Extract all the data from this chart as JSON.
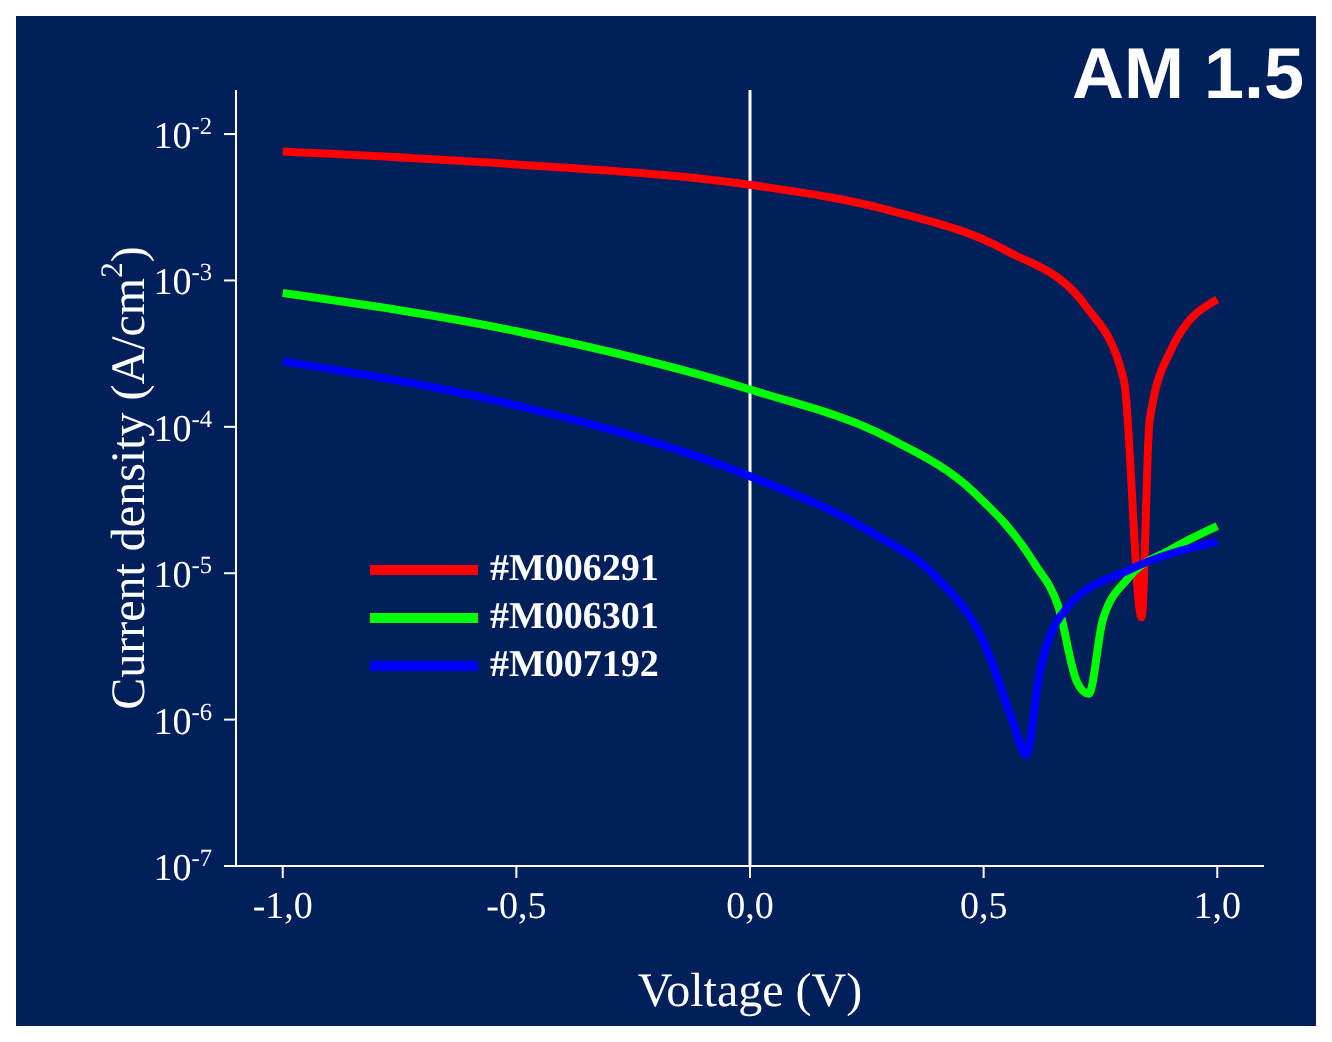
{
  "chart_data": {
    "type": "line",
    "xlabel": "Voltage (V)",
    "ylabel": "Current density (A/cm$^{2}$)",
    "annotations": [
      "AM 1.5"
    ],
    "log": "y",
    "xlim": [
      -1.1,
      1.1
    ],
    "xticks": [
      {
        "value": -1,
        "label": "-1,0"
      },
      {
        "value": -0.5,
        "label": "-0,5"
      },
      {
        "value": 0,
        "label": "0,0"
      },
      {
        "value": 0.5,
        "label": "0,5"
      },
      {
        "value": 1,
        "label": "1,0"
      }
    ],
    "ylim": [
      1e-07,
      0.02
    ],
    "yticks": [
      {
        "value": 1e-07,
        "label": "10$^{-7}$"
      },
      {
        "value": 1e-06,
        "label": "10$^{-6}$"
      },
      {
        "value": 1e-05,
        "label": "10$^{-5}$"
      },
      {
        "value": 0.0001,
        "label": "10$^{-4}$"
      },
      {
        "value": 0.001,
        "label": "10$^{-3}$"
      },
      {
        "value": 0.01,
        "label": "10$^{-2}$"
      }
    ],
    "ref_lines": [
      {
        "axis": "x",
        "value": 0,
        "color": "#ffffff"
      }
    ],
    "legend": "bottom left",
    "marker": "none",
    "line_style": "solid",
    "series": [
      {
        "name": "#M006291",
        "color": "#ff0000",
        "x": [
          -1,
          -0.5,
          0,
          0.3,
          0.548,
          0.72,
          0.8,
          0.838,
          0.855,
          0.9,
          1
        ],
        "values": [
          0.0076,
          0.0062,
          0.0045,
          0.003,
          0.0016,
          0.00066,
          0.00021,
          5e-06,
          0.00011,
          0.00033,
          0.00074
        ]
      },
      {
        "name": "#M006301",
        "color": "#00ff00",
        "x": [
          -1,
          -0.5,
          0,
          0.3,
          0.478,
          0.61,
          0.66,
          0.7,
          0.725,
          0.755,
          0.81,
          0.9,
          1
        ],
        "values": [
          0.00082,
          0.00045,
          0.00018,
          8.3e-05,
          3.6e-05,
          1.15e-05,
          5.9e-06,
          1.8e-06,
          1.5e-06,
          4.8e-06,
          9.3e-06,
          1.45e-05,
          2.1e-05
        ]
      },
      {
        "name": "#M007192",
        "color": "#0000ff",
        "x": [
          -1,
          -0.5,
          0,
          0.26,
          0.4,
          0.5,
          0.566,
          0.59,
          0.62,
          0.68,
          0.81,
          1
        ],
        "values": [
          0.00028,
          0.00014,
          4.6e-05,
          1.9e-05,
          9.3e-06,
          3.4e-06,
          9e-07,
          5.7e-07,
          2.1e-06,
          5.9e-06,
          1.05e-05,
          1.65e-05
        ]
      }
    ]
  }
}
